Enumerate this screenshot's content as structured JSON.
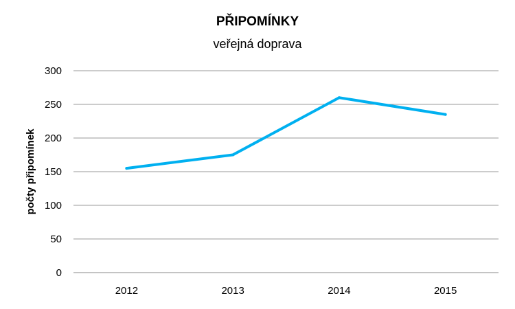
{
  "chart_data": {
    "type": "line",
    "title": "PŘIPOMÍNKY",
    "subtitle": "veřejná doprava",
    "xlabel": "",
    "ylabel": "počty připomínek",
    "categories": [
      "2012",
      "2013",
      "2014",
      "2015"
    ],
    "series": [
      {
        "values": [
          155,
          175,
          260,
          235
        ],
        "color": "#00B0F0"
      }
    ],
    "ylim": [
      0,
      300
    ],
    "yticks": [
      0,
      50,
      100,
      150,
      200,
      250,
      300
    ],
    "grid": true,
    "legend": "none"
  }
}
